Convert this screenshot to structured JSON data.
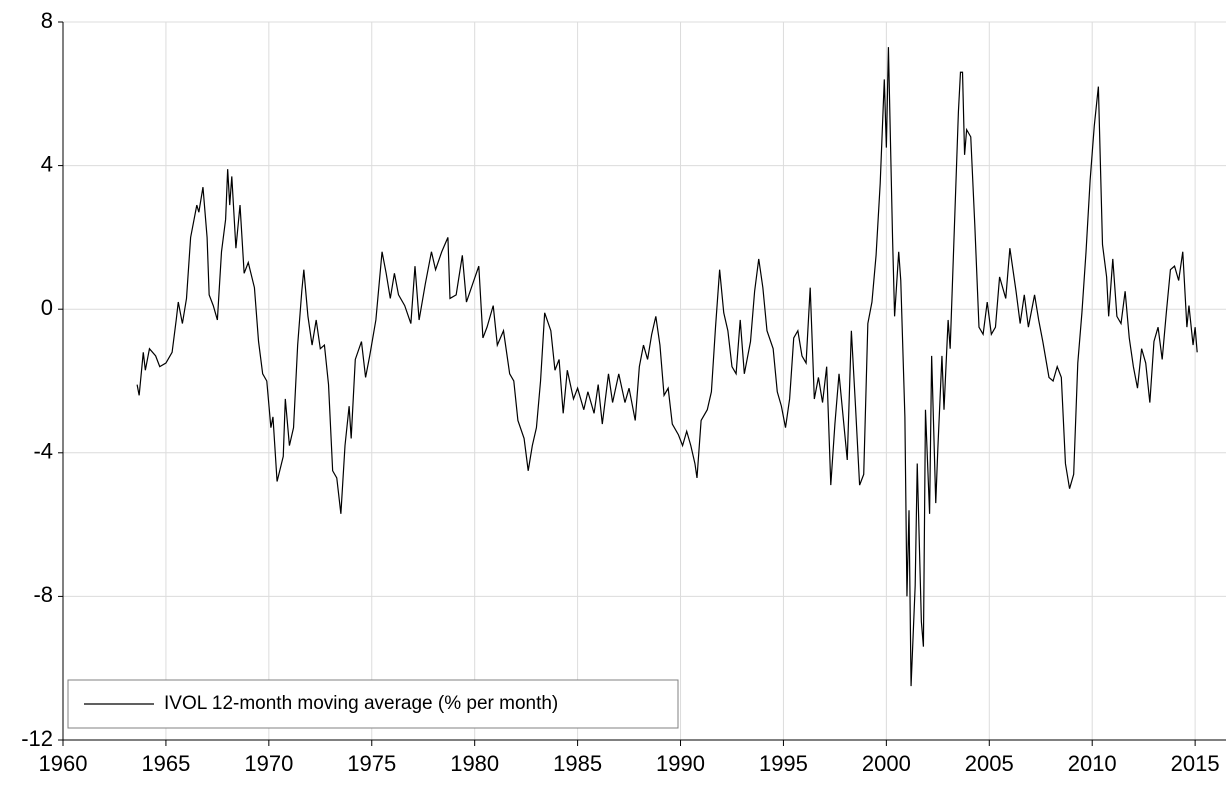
{
  "chart_data": {
    "type": "line",
    "x": [
      1963.6,
      1963.7,
      1963.9,
      1964.0,
      1964.2,
      1964.5,
      1964.7,
      1965.0,
      1965.3,
      1965.5,
      1965.6,
      1965.8,
      1966.0,
      1966.2,
      1966.5,
      1966.6,
      1966.8,
      1967.0,
      1967.1,
      1967.3,
      1967.5,
      1967.7,
      1967.9,
      1968.0,
      1968.1,
      1968.2,
      1968.4,
      1968.6,
      1968.8,
      1969.0,
      1969.3,
      1969.5,
      1969.7,
      1969.9,
      1970.1,
      1970.2,
      1970.4,
      1970.7,
      1970.8,
      1971.0,
      1971.2,
      1971.4,
      1971.6,
      1971.7,
      1971.9,
      1972.1,
      1972.3,
      1972.5,
      1972.7,
      1972.9,
      1973.1,
      1973.3,
      1973.5,
      1973.7,
      1973.9,
      1974.0,
      1974.2,
      1974.5,
      1974.7,
      1974.9,
      1975.2,
      1975.5,
      1975.7,
      1975.9,
      1976.1,
      1976.3,
      1976.6,
      1976.9,
      1977.1,
      1977.3,
      1977.6,
      1977.9,
      1978.1,
      1978.4,
      1978.7,
      1978.8,
      1979.1,
      1979.4,
      1979.6,
      1979.9,
      1980.2,
      1980.4,
      1980.6,
      1980.9,
      1981.1,
      1981.4,
      1981.7,
      1981.9,
      1982.1,
      1982.4,
      1982.6,
      1982.8,
      1983.0,
      1983.2,
      1983.4,
      1983.7,
      1983.9,
      1984.1,
      1984.3,
      1984.5,
      1984.8,
      1985.0,
      1985.3,
      1985.5,
      1985.8,
      1986.0,
      1986.2,
      1986.5,
      1986.7,
      1987.0,
      1987.3,
      1987.5,
      1987.8,
      1988.0,
      1988.2,
      1988.4,
      1988.6,
      1988.8,
      1989.0,
      1989.2,
      1989.4,
      1989.6,
      1989.9,
      1990.1,
      1990.3,
      1990.5,
      1990.7,
      1990.8,
      1991.0,
      1991.3,
      1991.5,
      1991.7,
      1991.9,
      1992.1,
      1992.3,
      1992.5,
      1992.7,
      1992.9,
      1993.1,
      1993.4,
      1993.6,
      1993.8,
      1994.0,
      1994.2,
      1994.5,
      1994.7,
      1994.9,
      1995.1,
      1995.3,
      1995.5,
      1995.7,
      1995.9,
      1996.1,
      1996.3,
      1996.5,
      1996.7,
      1996.9,
      1997.1,
      1997.3,
      1997.5,
      1997.7,
      1997.9,
      1998.1,
      1998.3,
      1998.5,
      1998.7,
      1998.9,
      1999.1,
      1999.3,
      1999.5,
      1999.7,
      1999.9,
      2000.0,
      2000.1,
      2000.3,
      2000.4,
      2000.6,
      2000.7,
      2000.9,
      2001.0,
      2001.1,
      2001.2,
      2001.4,
      2001.5,
      2001.7,
      2001.8,
      2001.9,
      2002.1,
      2002.2,
      2002.4,
      2002.5,
      2002.7,
      2002.8,
      2003.0,
      2003.1,
      2003.3,
      2003.5,
      2003.6,
      2003.7,
      2003.8,
      2003.9,
      2004.1,
      2004.3,
      2004.5,
      2004.7,
      2004.9,
      2005.1,
      2005.3,
      2005.5,
      2005.8,
      2006.0,
      2006.3,
      2006.5,
      2006.7,
      2006.9,
      2007.2,
      2007.4,
      2007.6,
      2007.9,
      2008.1,
      2008.3,
      2008.5,
      2008.7,
      2008.9,
      2009.1,
      2009.3,
      2009.5,
      2009.7,
      2009.9,
      2010.1,
      2010.3,
      2010.5,
      2010.7,
      2010.8,
      2011.0,
      2011.2,
      2011.4,
      2011.6,
      2011.8,
      2012.0,
      2012.2,
      2012.4,
      2012.6,
      2012.8,
      2013.0,
      2013.2,
      2013.4,
      2013.6,
      2013.8,
      2014.0,
      2014.2,
      2014.4,
      2014.6,
      2014.7,
      2014.9,
      2015.0,
      2015.1
    ],
    "series": [
      {
        "name": "IVOL 12-month moving average (% per month)",
        "color": "#000000",
        "values": [
          -2.1,
          -2.4,
          -1.2,
          -1.7,
          -1.1,
          -1.3,
          -1.6,
          -1.5,
          -1.2,
          -0.3,
          0.2,
          -0.4,
          0.3,
          2.0,
          2.9,
          2.7,
          3.4,
          2.0,
          0.4,
          0.1,
          -0.3,
          1.6,
          2.5,
          3.9,
          2.9,
          3.7,
          1.7,
          2.9,
          1.0,
          1.3,
          0.6,
          -0.9,
          -1.8,
          -2.0,
          -3.3,
          -3.0,
          -4.8,
          -4.1,
          -2.5,
          -3.8,
          -3.3,
          -1.0,
          0.5,
          1.1,
          -0.2,
          -1.0,
          -0.3,
          -1.1,
          -1.0,
          -2.1,
          -4.5,
          -4.7,
          -5.7,
          -3.8,
          -2.7,
          -3.6,
          -1.4,
          -0.9,
          -1.9,
          -1.3,
          -0.3,
          1.6,
          1.0,
          0.3,
          1.0,
          0.4,
          0.1,
          -0.4,
          1.2,
          -0.3,
          0.7,
          1.6,
          1.1,
          1.6,
          2.0,
          0.3,
          0.4,
          1.5,
          0.2,
          0.7,
          1.2,
          -0.8,
          -0.5,
          0.1,
          -1.0,
          -0.6,
          -1.8,
          -2.0,
          -3.1,
          -3.6,
          -4.5,
          -3.8,
          -3.3,
          -2.0,
          -0.1,
          -0.6,
          -1.7,
          -1.4,
          -2.9,
          -1.7,
          -2.5,
          -2.2,
          -2.8,
          -2.3,
          -2.9,
          -2.1,
          -3.2,
          -1.8,
          -2.6,
          -1.8,
          -2.6,
          -2.2,
          -3.1,
          -1.6,
          -1.0,
          -1.4,
          -0.7,
          -0.2,
          -1.0,
          -2.4,
          -2.2,
          -3.2,
          -3.5,
          -3.8,
          -3.4,
          -3.8,
          -4.3,
          -4.7,
          -3.1,
          -2.8,
          -2.3,
          -0.5,
          1.1,
          -0.1,
          -0.6,
          -1.6,
          -1.8,
          -0.3,
          -1.8,
          -0.9,
          0.5,
          1.4,
          0.6,
          -0.6,
          -1.1,
          -2.3,
          -2.7,
          -3.3,
          -2.5,
          -0.8,
          -0.6,
          -1.3,
          -1.5,
          0.6,
          -2.5,
          -1.9,
          -2.6,
          -1.6,
          -4.9,
          -3.2,
          -1.8,
          -3.0,
          -4.2,
          -0.6,
          -2.7,
          -4.9,
          -4.6,
          -0.4,
          0.2,
          1.5,
          3.5,
          6.4,
          4.5,
          7.3,
          2.0,
          -0.2,
          1.6,
          0.8,
          -3.0,
          -8.0,
          -5.6,
          -10.5,
          -7.7,
          -4.3,
          -8.7,
          -9.4,
          -2.8,
          -5.7,
          -1.3,
          -5.4,
          -3.9,
          -1.3,
          -2.8,
          -0.3,
          -1.1,
          2.2,
          5.5,
          6.6,
          6.6,
          4.3,
          5.0,
          4.8,
          2.3,
          -0.5,
          -0.7,
          0.2,
          -0.7,
          -0.5,
          0.9,
          0.3,
          1.7,
          0.5,
          -0.4,
          0.4,
          -0.5,
          0.4,
          -0.3,
          -0.9,
          -1.9,
          -2.0,
          -1.6,
          -1.9,
          -4.3,
          -5.0,
          -4.6,
          -1.5,
          -0.1,
          1.6,
          3.6,
          5.1,
          6.2,
          1.8,
          0.9,
          -0.2,
          1.4,
          -0.2,
          -0.4,
          0.5,
          -0.8,
          -1.6,
          -2.2,
          -1.1,
          -1.5,
          -2.6,
          -0.9,
          -0.5,
          -1.4,
          -0.1,
          1.1,
          1.2,
          0.8,
          1.6,
          -0.5,
          0.1,
          -1.0,
          -0.5,
          -1.2
        ]
      }
    ],
    "xlim": [
      1960,
      2016.5
    ],
    "xticks": [
      1960,
      1965,
      1970,
      1975,
      1980,
      1985,
      1990,
      1995,
      2000,
      2005,
      2010,
      2015
    ],
    "ylim": [
      -12,
      8
    ],
    "yticks": [
      -12,
      -8,
      -4,
      0,
      4,
      8
    ],
    "grid": true,
    "legend": "lower left"
  }
}
